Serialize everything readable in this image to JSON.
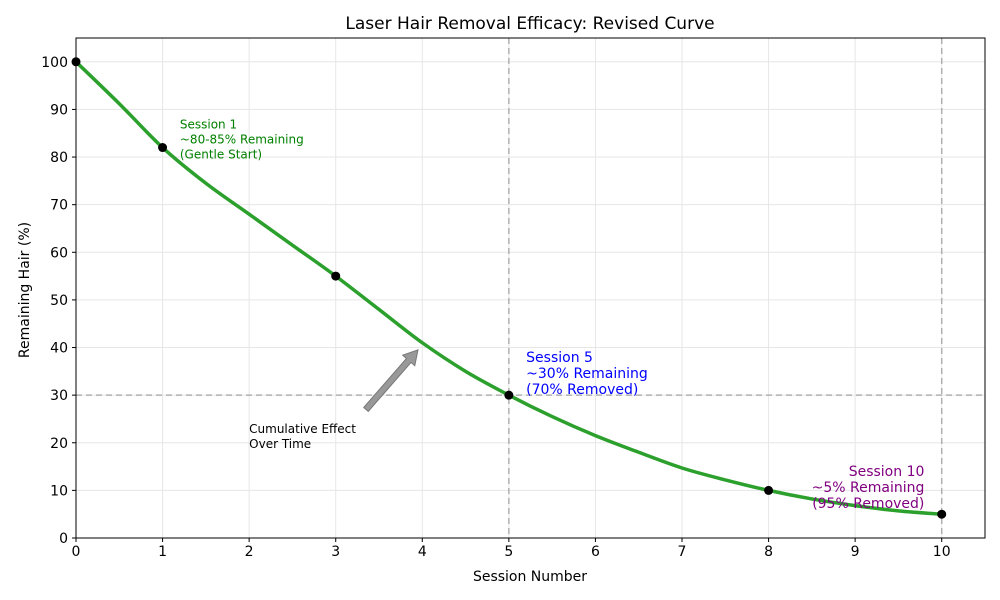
{
  "chart_data": {
    "type": "line",
    "title": "Laser Hair Removal Efficacy: Revised Curve",
    "xlabel": "Session Number",
    "ylabel": "Remaining Hair (%)",
    "xlim": [
      0,
      10.5
    ],
    "ylim": [
      0,
      105
    ],
    "xticks": [
      0,
      1,
      2,
      3,
      4,
      5,
      6,
      7,
      8,
      9,
      10
    ],
    "yticks": [
      0,
      10,
      20,
      30,
      40,
      50,
      60,
      70,
      80,
      90,
      100
    ],
    "grid": true,
    "series": [
      {
        "name": "Remaining Hair",
        "color": "#2ca02c",
        "curve_x": [
          0,
          0.5,
          1,
          1.5,
          2,
          2.5,
          3,
          3.5,
          4,
          4.5,
          5,
          5.5,
          6,
          6.5,
          7,
          7.5,
          8,
          8.5,
          9,
          9.5,
          10
        ],
        "curve_y": [
          100,
          91.2,
          82,
          74.5,
          68,
          61.5,
          55,
          48,
          41,
          35,
          30,
          25.5,
          21.5,
          18,
          14.7,
          12.2,
          10,
          8.2,
          6.8,
          5.7,
          5
        ]
      }
    ],
    "markers": [
      {
        "x": 0,
        "y": 100
      },
      {
        "x": 1,
        "y": 82
      },
      {
        "x": 3,
        "y": 55
      },
      {
        "x": 5,
        "y": 30
      },
      {
        "x": 8,
        "y": 10
      },
      {
        "x": 10,
        "y": 5
      }
    ],
    "reference_lines": [
      {
        "axis": "x",
        "value": 5
      },
      {
        "axis": "x",
        "value": 10
      },
      {
        "axis": "y",
        "value": 30
      }
    ],
    "annotations": [
      {
        "id": "session1",
        "lines": [
          "Session 1",
          "~80-85% Remaining",
          "(Gentle Start)"
        ],
        "x": 1.2,
        "y": 86,
        "color": "#008000",
        "align": "left",
        "size": "small"
      },
      {
        "id": "session5",
        "lines": [
          "Session 5",
          "~30% Remaining",
          "(70% Removed)"
        ],
        "x": 5.2,
        "y": 37,
        "color": "#0000ff",
        "align": "left",
        "size": "medium"
      },
      {
        "id": "session10",
        "lines": [
          "Session 10",
          "~5% Remaining",
          "(95% Removed)"
        ],
        "x": 9.8,
        "y": 13,
        "color": "#800080",
        "align": "right",
        "size": "medium"
      },
      {
        "id": "cumulative",
        "lines": [
          "Cumulative Effect",
          "Over Time"
        ],
        "x": 2,
        "y": 22,
        "color": "#000000",
        "align": "left",
        "size": "small"
      }
    ],
    "arrow": {
      "from_x": 3.35,
      "from_y": 27,
      "to_x": 3.95,
      "to_y": 39.5,
      "color": "#999999"
    }
  }
}
